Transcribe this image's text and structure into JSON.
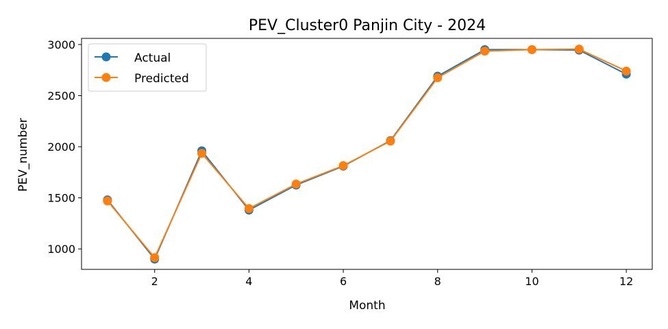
{
  "chart_data": {
    "type": "line",
    "title": "PEV_Cluster0 Panjin City - 2024",
    "xlabel": "Month",
    "ylabel": "PEV_number",
    "x": [
      1,
      2,
      3,
      4,
      5,
      6,
      7,
      8,
      9,
      10,
      11,
      12
    ],
    "xlim": [
      0.45,
      12.55
    ],
    "ylim": [
      800,
      3060
    ],
    "xticks": [
      2,
      4,
      6,
      8,
      10,
      12
    ],
    "yticks": [
      1000,
      1500,
      2000,
      2500,
      3000
    ],
    "series": [
      {
        "name": "Actual",
        "color": "#1f77b4",
        "values": [
          1480,
          900,
          1960,
          1380,
          1625,
          1810,
          2060,
          2690,
          2950,
          2950,
          2945,
          2710
        ]
      },
      {
        "name": "Predicted",
        "color": "#ff7f0e",
        "values": [
          1470,
          915,
          1935,
          1395,
          1635,
          1815,
          2055,
          2675,
          2935,
          2950,
          2955,
          2740
        ]
      }
    ],
    "legend_position": "upper-left",
    "grid": false
  }
}
